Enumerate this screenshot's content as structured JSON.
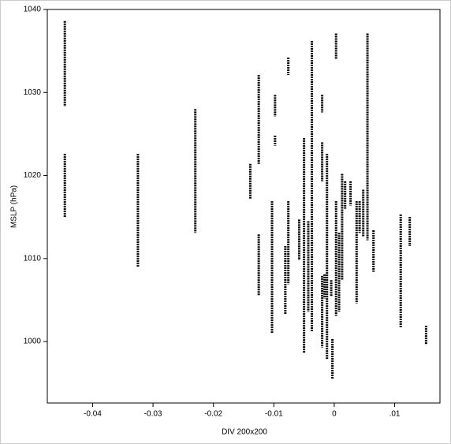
{
  "chart_data": {
    "type": "scatter",
    "x_label": "DIV 200x200",
    "y_label": "MSLP (hPa)",
    "color": "#000000",
    "xlim": [
      -0.0475,
      0.0175
    ],
    "ylim": [
      992.6,
      1040
    ],
    "xticks": [
      -0.04,
      -0.03,
      -0.02,
      -0.01,
      0,
      {
        "value": 0.01,
        "label": ".01"
      }
    ],
    "yticks": [
      1000,
      1010,
      1020,
      1030,
      1040
    ],
    "segments": [
      {
        "x": -0.0446,
        "y": [
          1038.6,
          1028.3
        ]
      },
      {
        "x": -0.0446,
        "y": [
          1022.6,
          1015.0
        ]
      },
      {
        "x": -0.0325,
        "y": [
          1022.6,
          1009.0
        ]
      },
      {
        "x": -0.023,
        "y": [
          1028.0,
          1013.1
        ]
      },
      {
        "x": -0.0139,
        "y": [
          1021.4,
          1017.2
        ]
      },
      {
        "x": -0.0125,
        "y": [
          1032.1,
          1021.4
        ]
      },
      {
        "x": -0.0125,
        "y": [
          1012.9,
          1005.5
        ]
      },
      {
        "x": -0.0103,
        "y": [
          1016.9,
          1001.0
        ]
      },
      {
        "x": -0.0098,
        "y": [
          1029.7,
          1027.1
        ]
      },
      {
        "x": -0.0098,
        "y": [
          1024.8,
          1023.6
        ]
      },
      {
        "x": -0.0081,
        "y": [
          1011.5,
          1003.3
        ]
      },
      {
        "x": -0.0076,
        "y": [
          1034.2,
          1032.1
        ]
      },
      {
        "x": -0.0076,
        "y": [
          1016.9,
          1006.9
        ]
      },
      {
        "x": -0.0058,
        "y": [
          1014.7,
          1009.8
        ]
      },
      {
        "x": -0.005,
        "y": [
          1024.5,
          998.6
        ]
      },
      {
        "x": -0.0043,
        "y": [
          1014.5,
          1003.6
        ]
      },
      {
        "x": -0.0037,
        "y": [
          1036.2,
          1001.2
        ]
      },
      {
        "x": -0.002,
        "y": [
          1029.7,
          1027.6
        ]
      },
      {
        "x": -0.002,
        "y": [
          1024.0,
          1019.3
        ]
      },
      {
        "x": -0.002,
        "y": [
          1007.9,
          999.3
        ]
      },
      {
        "x": -0.0016,
        "y": [
          1008.1,
          1005.2
        ]
      },
      {
        "x": -0.0012,
        "y": [
          1022.6,
          997.9
        ]
      },
      {
        "x": -0.0005,
        "y": [
          1007.4,
          1005.5
        ]
      },
      {
        "x": -0.0003,
        "y": [
          1000.3,
          995.5
        ]
      },
      {
        "x": 0.0003,
        "y": [
          1037.1,
          1034.0
        ]
      },
      {
        "x": 0.0003,
        "y": [
          1016.9,
          1003.1
        ]
      },
      {
        "x": 0.0008,
        "y": [
          1013.1,
          1003.6
        ]
      },
      {
        "x": 0.0013,
        "y": [
          1020.2,
          1007.4
        ]
      },
      {
        "x": 0.0018,
        "y": [
          1019.3,
          1016.0
        ]
      },
      {
        "x": 0.0027,
        "y": [
          1019.3,
          1016.4
        ]
      },
      {
        "x": 0.0037,
        "y": [
          1016.9,
          1004.6
        ]
      },
      {
        "x": 0.0042,
        "y": [
          1016.9,
          1013.1
        ]
      },
      {
        "x": 0.0048,
        "y": [
          1018.3,
          1012.6
        ]
      },
      {
        "x": 0.0055,
        "y": [
          1037.1,
          1012.2
        ]
      },
      {
        "x": 0.0065,
        "y": [
          1013.4,
          1008.4
        ]
      },
      {
        "x": 0.011,
        "y": [
          1015.3,
          1001.7
        ]
      },
      {
        "x": 0.0125,
        "y": [
          1015.0,
          1011.5
        ]
      },
      {
        "x": 0.0152,
        "y": [
          1001.9,
          999.6
        ]
      }
    ]
  }
}
